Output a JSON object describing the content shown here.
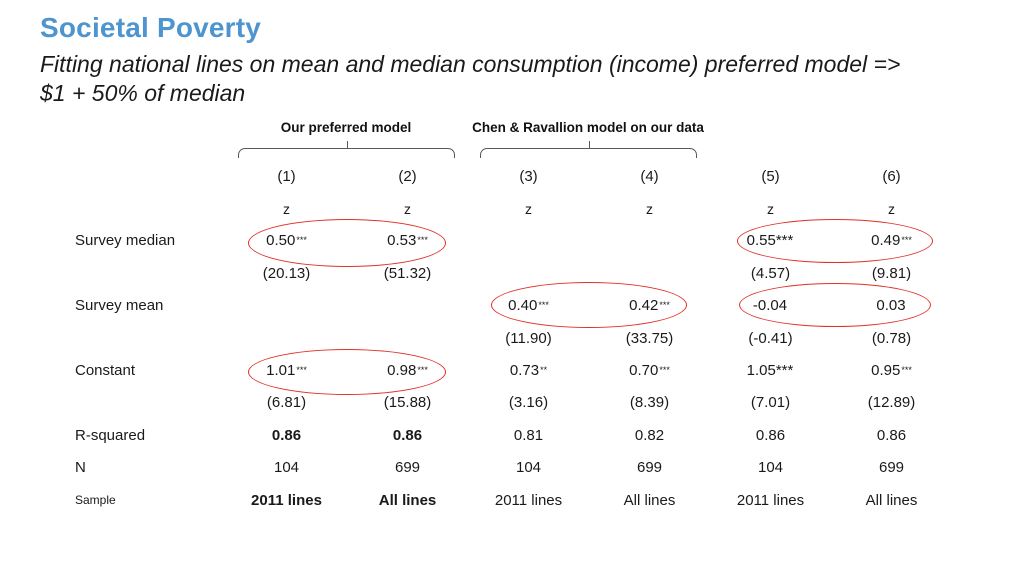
{
  "title": "Societal Poverty",
  "subtitle": {
    "line1": "Fitting national lines on mean and median consumption (income) preferred model =>",
    "line2": "$1 + 50% of median"
  },
  "colors": {
    "title_blue": "#4E95D0",
    "highlight_red": "#E03127",
    "text": "#1A1A1A",
    "brace_gray": "#595959"
  },
  "table": {
    "group1_label": "Our preferred model",
    "group2_label": "Chen & Ravallion model on our data",
    "col_numbers": [
      "(1)",
      "(2)",
      "(3)",
      "(4)",
      "(5)",
      "(6)"
    ],
    "z": "z",
    "row_labels": {
      "survey_median": "Survey median",
      "survey_mean": "Survey mean",
      "constant": "Constant",
      "r_squared": "R-squared",
      "n": "N",
      "sample": "Sample"
    },
    "survey_median": {
      "coef": [
        {
          "v": "0.50",
          "s": "***"
        },
        {
          "v": "0.53",
          "s": "***"
        },
        {
          "v": "",
          "s": ""
        },
        {
          "v": "",
          "s": ""
        },
        {
          "v": "0.55***",
          "s": ""
        },
        {
          "v": "0.49",
          "s": "***"
        }
      ],
      "t": [
        "(20.13)",
        "(51.32)",
        "",
        "",
        "(4.57)",
        "(9.81)"
      ]
    },
    "survey_mean": {
      "coef": [
        {
          "v": "",
          "s": ""
        },
        {
          "v": "",
          "s": ""
        },
        {
          "v": "0.40",
          "s": "***"
        },
        {
          "v": "0.42",
          "s": "***"
        },
        {
          "v": "-0.04",
          "s": ""
        },
        {
          "v": "0.03",
          "s": ""
        }
      ],
      "t": [
        "",
        "",
        "(11.90)",
        "(33.75)",
        "(-0.41)",
        "(0.78)"
      ]
    },
    "constant": {
      "coef": [
        {
          "v": "1.01",
          "s": "***"
        },
        {
          "v": "0.98",
          "s": "***"
        },
        {
          "v": "0.73",
          "s": "**"
        },
        {
          "v": "0.70",
          "s": "***"
        },
        {
          "v": "1.05***",
          "s": ""
        },
        {
          "v": "0.95",
          "s": "***"
        }
      ],
      "t": [
        "(6.81)",
        "(15.88)",
        "(3.16)",
        "(8.39)",
        "(7.01)",
        "(12.89)"
      ]
    },
    "r_squared": [
      "0.86",
      "0.86",
      "0.81",
      "0.82",
      "0.86",
      "0.86"
    ],
    "n": [
      "104",
      "699",
      "104",
      "699",
      "104",
      "699"
    ],
    "sample": [
      "2011 lines",
      "All lines",
      "2011 lines",
      "All lines",
      "2011 lines",
      "All lines"
    ]
  },
  "highlights": [
    "survey-median-cols-1-2",
    "survey-median-cols-5-6",
    "survey-mean-cols-3-4",
    "survey-mean-cols-5-6",
    "constant-cols-1-2"
  ]
}
